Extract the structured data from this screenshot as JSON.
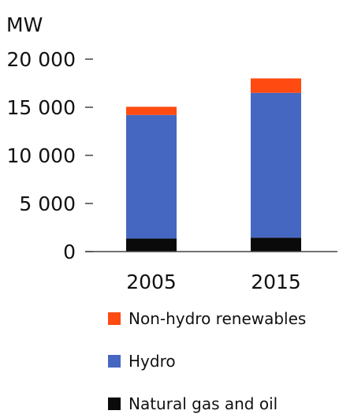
{
  "chart_data": {
    "type": "bar",
    "stacked": true,
    "unit_label": "MW",
    "categories": [
      "2005",
      "2015"
    ],
    "yticks": [
      0,
      5000,
      10000,
      15000,
      20000
    ],
    "ytick_labels": [
      "0",
      "5 000",
      "10 000",
      "15 000",
      "20 000"
    ],
    "ylim": [
      0,
      20000
    ],
    "series": [
      {
        "name": "Natural gas and oil",
        "values": [
          1350,
          1450
        ],
        "color": "#0a0a0a"
      },
      {
        "name": "Hydro",
        "values": [
          12850,
          15050
        ],
        "color": "#4667c1"
      },
      {
        "name": "Non-hydro renewables",
        "values": [
          850,
          1500
        ],
        "color": "#ff4a12"
      }
    ],
    "legend_order": [
      "Non-hydro renewables",
      "Hydro",
      "Natural gas and oil"
    ],
    "legend_position": "bottom",
    "grid": false
  }
}
